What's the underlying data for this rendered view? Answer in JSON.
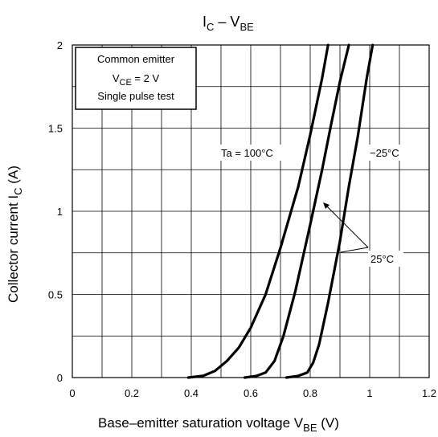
{
  "chart_data": {
    "type": "line",
    "title": {
      "main": "I",
      "main_sub": "C",
      "sep": " – V",
      "sep_sub": "BE"
    },
    "xlabel": {
      "text": "Base–emitter saturation voltage   V",
      "sub": "BE",
      "unit": "   (V)"
    },
    "ylabel": {
      "text": "Collector current   I",
      "sub": "C",
      "unit": "   (A)"
    },
    "xlim": [
      0,
      1.2
    ],
    "ylim": [
      0,
      2
    ],
    "x_ticks": [
      "0",
      "0.2",
      "0.4",
      "0.6",
      "0.8",
      "1",
      "1.2"
    ],
    "y_ticks": [
      "0",
      "0.5",
      "1",
      "1.5",
      "2"
    ],
    "grid": true,
    "conditions": {
      "line1": "Common emitter",
      "line2_pre": "V",
      "line2_sub": "CE",
      "line2_post": " = 2 V",
      "line3": "Single pulse test"
    },
    "series": [
      {
        "name": "Ta = 100°C",
        "x": [
          0.39,
          0.44,
          0.48,
          0.52,
          0.56,
          0.6,
          0.65,
          0.7,
          0.76,
          0.8,
          0.84,
          0.86
        ],
        "y": [
          0.0,
          0.01,
          0.04,
          0.1,
          0.18,
          0.3,
          0.5,
          0.78,
          1.15,
          1.46,
          1.8,
          2.0
        ]
      },
      {
        "name": "25°C",
        "x": [
          0.58,
          0.62,
          0.65,
          0.68,
          0.71,
          0.75,
          0.8,
          0.84,
          0.87,
          0.9,
          0.93
        ],
        "y": [
          0.0,
          0.01,
          0.03,
          0.1,
          0.25,
          0.52,
          0.92,
          1.25,
          1.52,
          1.78,
          2.0
        ]
      },
      {
        "name": "−25°C",
        "x": [
          0.72,
          0.76,
          0.79,
          0.81,
          0.83,
          0.86,
          0.9,
          0.93,
          0.96,
          0.99,
          1.01
        ],
        "y": [
          0.0,
          0.01,
          0.03,
          0.09,
          0.2,
          0.45,
          0.82,
          1.15,
          1.45,
          1.8,
          2.0
        ]
      }
    ]
  }
}
